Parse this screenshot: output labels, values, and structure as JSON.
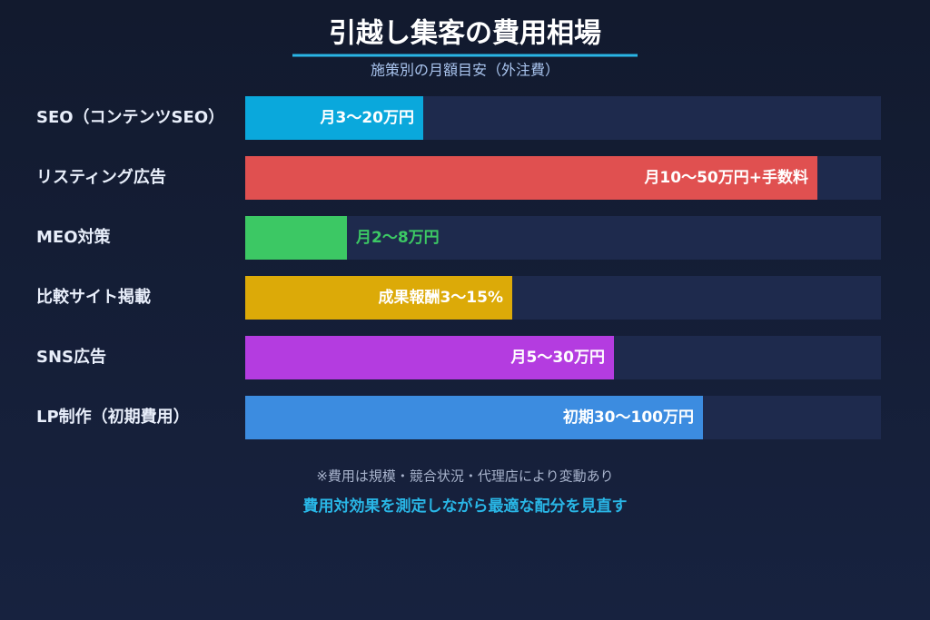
{
  "chart_data": {
    "type": "bar",
    "orientation": "horizontal",
    "title": "引越し集客の費用相場",
    "subtitle": "施策別の月額目安（外注費）",
    "categories": [
      "SEO（コンテンツSEO）",
      "リスティング広告",
      "MEO対策",
      "比較サイト掲載",
      "SNS広告",
      "LP制作（初期費用）"
    ],
    "values": [
      28,
      90,
      16,
      42,
      58,
      72
    ],
    "labels": [
      "月3〜20万円",
      "月10〜50万円+手数料",
      "月2〜8万円",
      "成果報酬3〜15%",
      "月5〜30万円",
      "初期30〜100万円"
    ],
    "colors": [
      "#0aa8dc",
      "#e05050",
      "#3cc864",
      "#dcaa08",
      "#b43ce0",
      "#3c8ce0"
    ],
    "xlim": [
      0,
      100
    ],
    "notes": [
      "※費用は規模・競合状況・代理店により変動あり",
      "費用対効果を測定しながら最適な配分を見直す"
    ]
  }
}
